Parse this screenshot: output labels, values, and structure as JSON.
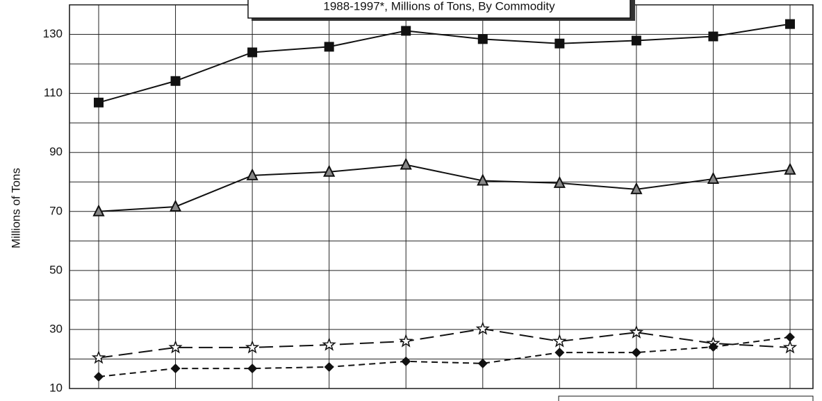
{
  "chart_data": {
    "type": "line",
    "title": "1988-1997*, Millions of Tons, By Commodity",
    "y_label": "Millions of Tons",
    "categories": [
      null,
      null,
      null,
      null,
      null,
      null,
      null,
      null,
      null,
      null
    ],
    "series": [
      {
        "color": "#111111",
        "marker": "square",
        "dash": "solid",
        "values": [
          106.9,
          114.2,
          123.9,
          125.8,
          131.2,
          128.4,
          126.9,
          127.9,
          129.3,
          133.5
        ]
      },
      {
        "color": "#111111",
        "marker": "triangle",
        "dash": "solid",
        "values": [
          70,
          71.6,
          82.2,
          83.4,
          85.8,
          80.4,
          79.6,
          77.5,
          81,
          84.1
        ]
      },
      {
        "color": "#111111",
        "marker": "star",
        "dash": "long",
        "values": [
          20.4,
          23.9,
          23.9,
          24.8,
          26,
          30.2,
          26,
          29,
          25.3,
          23.9
        ]
      },
      {
        "color": "#111111",
        "marker": "diamond",
        "dash": "short",
        "values": [
          14,
          16.8,
          16.8,
          17.3,
          19.2,
          18.5,
          22.2,
          22.2,
          24.1,
          27.4
        ]
      }
    ],
    "ylim": [
      10,
      140
    ],
    "yticks": [
      10,
      30,
      50,
      70,
      90,
      110,
      130
    ],
    "minor_yticks": [
      20,
      40,
      60,
      80,
      100,
      120,
      140
    ],
    "grid": true
  }
}
